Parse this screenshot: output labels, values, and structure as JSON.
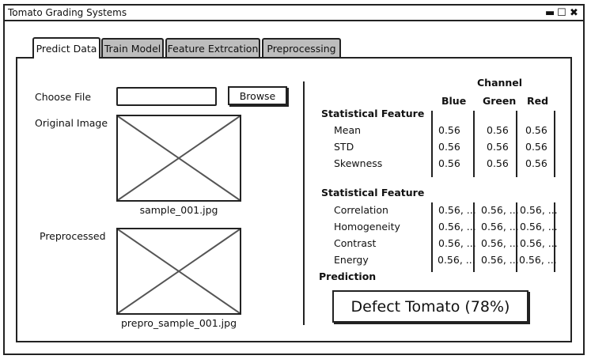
{
  "window": {
    "title": "Tomato Grading Systems",
    "minimize": "▬",
    "maximize": "☐",
    "close": "✖"
  },
  "tabs": [
    "Predict Data",
    "Train Model",
    "Feature Extrcation",
    "Preprocessing"
  ],
  "left": {
    "choose_file_label": "Choose File",
    "file_value": "",
    "browse_label": "Browse",
    "original_label": "Original Image",
    "original_caption": "sample_001.jpg",
    "preprocessed_label": "Preprocessed",
    "preprocessed_caption": "prepro_sample_001.jpg"
  },
  "right": {
    "channel_header": "Channel",
    "columns": [
      "Blue",
      "Green",
      "Red"
    ],
    "section1_title": "Statistical Feature",
    "section1_rows": [
      {
        "name": "Mean",
        "values": [
          "0.56",
          "0.56",
          "0.56"
        ]
      },
      {
        "name": "STD",
        "values": [
          "0.56",
          "0.56",
          "0.56"
        ]
      },
      {
        "name": "Skewness",
        "values": [
          "0.56",
          "0.56",
          "0.56"
        ]
      }
    ],
    "section2_title": "Statistical Feature",
    "section2_rows": [
      {
        "name": "Correlation",
        "values": [
          "0.56, ...",
          "0.56, ...",
          "0.56, ..."
        ]
      },
      {
        "name": "Homogeneity",
        "values": [
          "0.56, ...",
          "0.56, ...",
          "0.56, ..."
        ]
      },
      {
        "name": "Contrast",
        "values": [
          "0.56, ...",
          "0.56, ...",
          "0.56, ..."
        ]
      },
      {
        "name": "Energy",
        "values": [
          "0.56, ...",
          "0.56, ...",
          "0.56, ..."
        ]
      }
    ],
    "prediction_label": "Prediction",
    "prediction_value": "Defect Tomato (78%)"
  }
}
